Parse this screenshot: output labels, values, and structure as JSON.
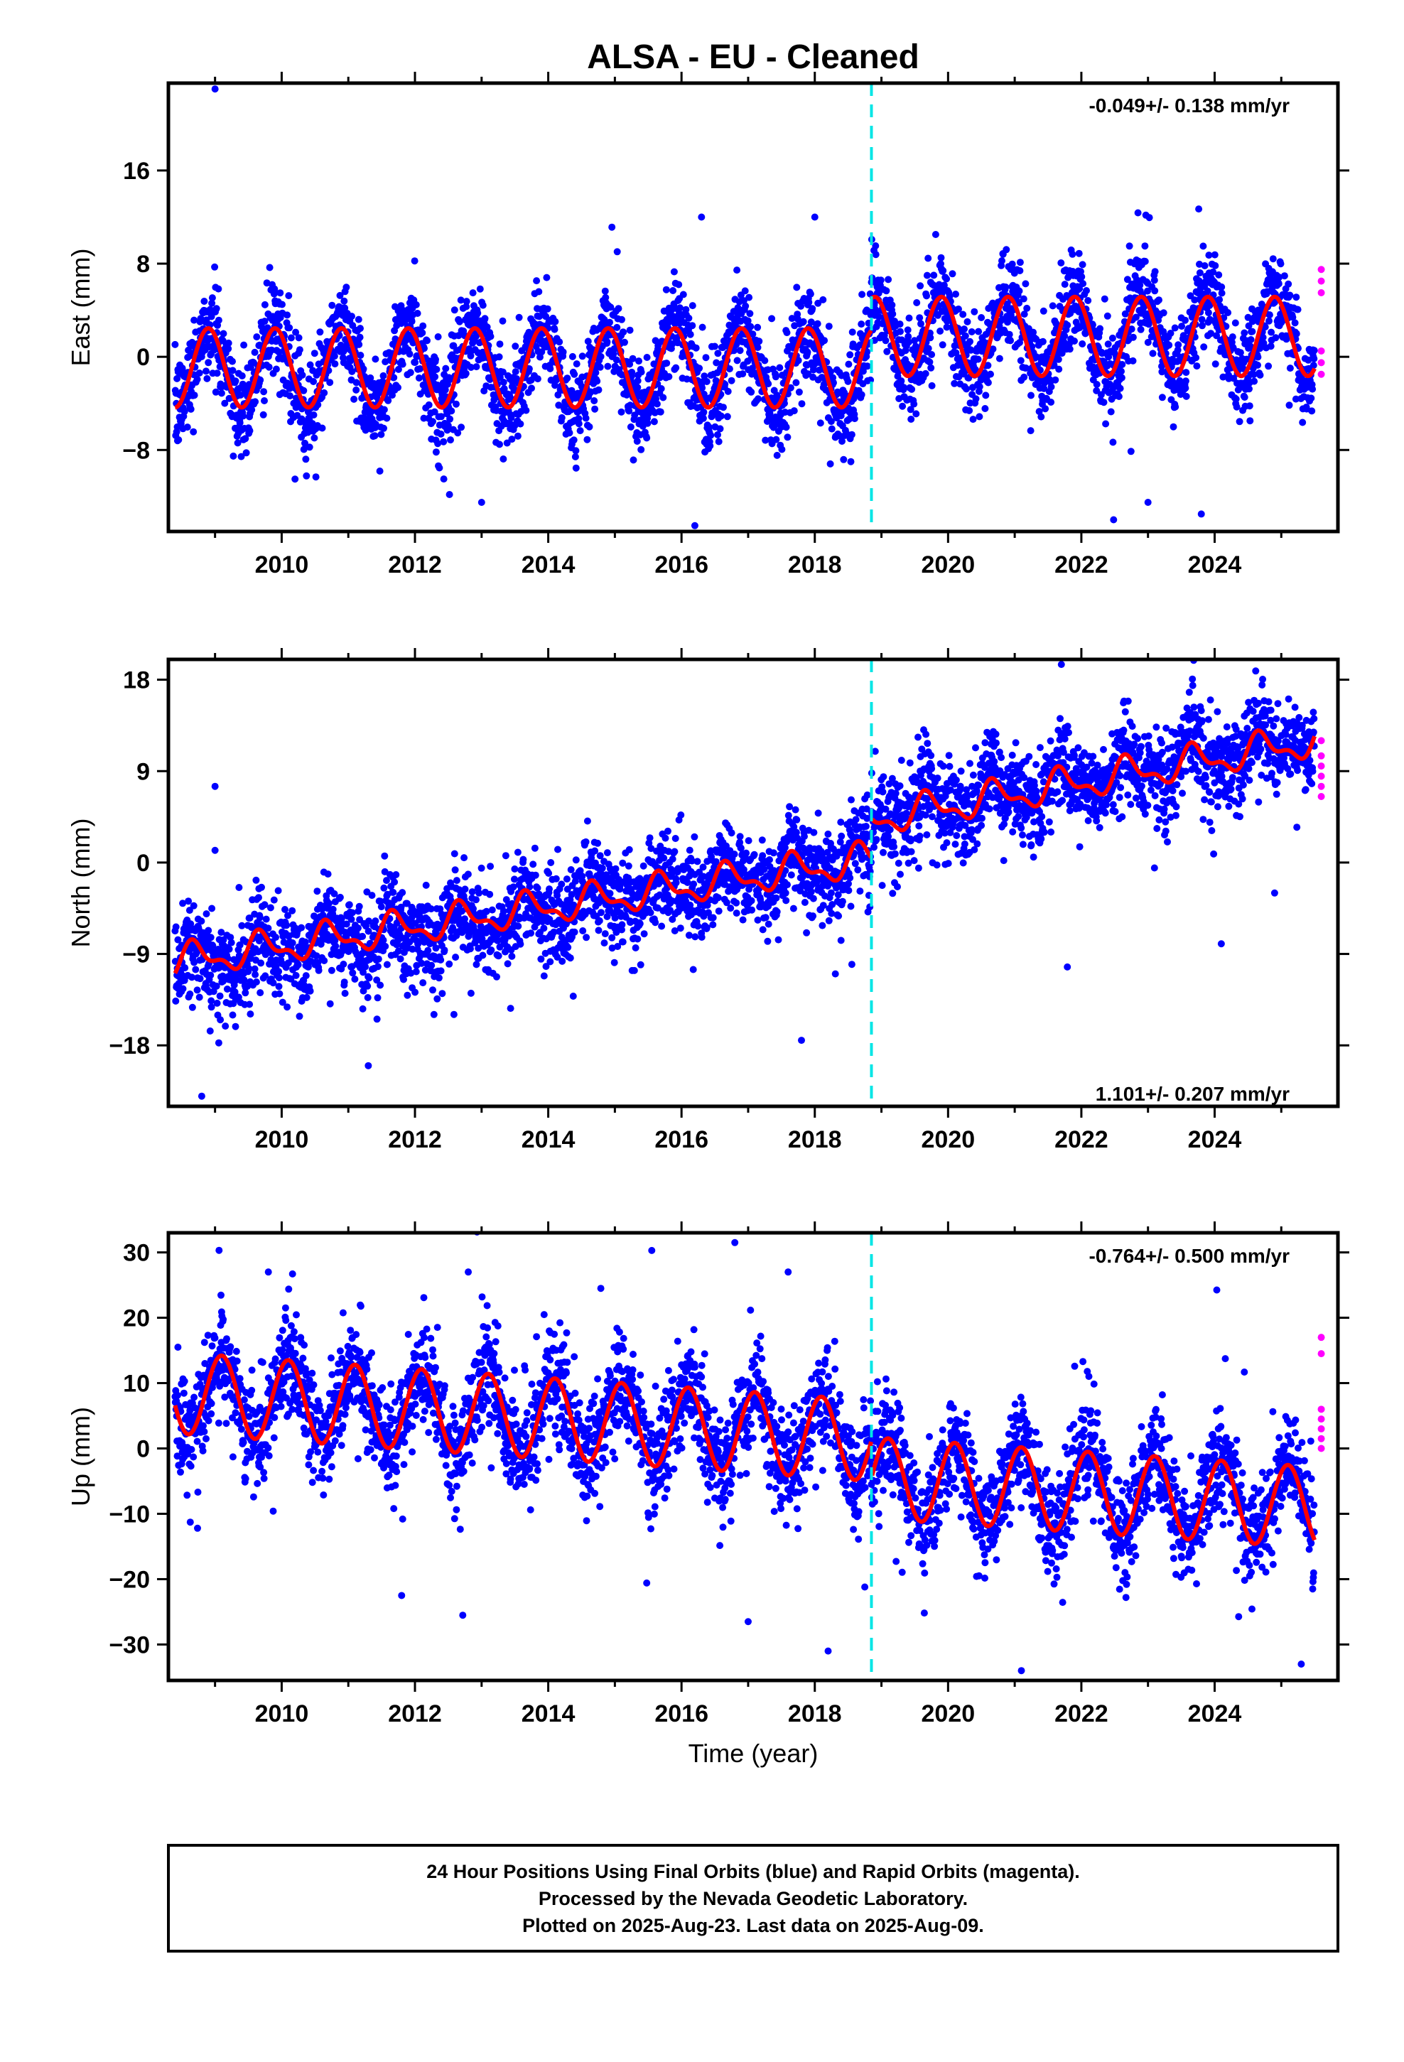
{
  "title": "ALSA  - EU - Cleaned",
  "footer": {
    "line1": "24 Hour Positions Using Final Orbits (blue) and Rapid Orbits (magenta).",
    "line2": "Processed by the Nevada Geodetic Laboratory.",
    "line3": "Plotted on 2025-Aug-23. Last data on 2025-Aug-09."
  },
  "colors": {
    "final": "#0000ff",
    "rapid": "#ff00ff",
    "model": "#ff0000",
    "offset": "#00e5e5"
  },
  "chart_data": [
    {
      "type": "scatter",
      "ylabel": "East (mm)",
      "xlabel": "",
      "xlim": [
        2008.3,
        2025.85
      ],
      "ylim": [
        -15,
        23.5
      ],
      "xticks": [
        "2010",
        "2012",
        "2014",
        "2016",
        "2018",
        "2020",
        "2022",
        "2024"
      ],
      "yticks": [
        "-8",
        "0",
        "8",
        "16"
      ],
      "rate_label": "-0.049+/- 0.138 mm/yr",
      "equipment_change_year": 2018.85,
      "series": [
        {
          "name": "Final Orbits",
          "color": "#0000ff",
          "trend": "flat with seasonal signal",
          "start": 2008.4,
          "end": 2025.5,
          "center_before": -1.0,
          "center_after": 1.8,
          "annual_amplitude": 3.5,
          "scatter_sd": 2.0,
          "outliers": [
            [
              2009.0,
              23.0
            ],
            [
              2016.2,
              -14.5
            ],
            [
              2016.3,
              12.0
            ],
            [
              2018.0,
              12.0
            ],
            [
              2023.0,
              -12.5
            ],
            [
              2023.8,
              -13.5
            ],
            [
              2013.0,
              -12.5
            ],
            [
              2010.2,
              -10.5
            ]
          ]
        },
        {
          "name": "Rapid Orbits",
          "color": "#ff00ff",
          "points": [
            [
              2025.6,
              7.5
            ],
            [
              2025.6,
              6.5
            ],
            [
              2025.6,
              5.5
            ],
            [
              2025.6,
              0.5
            ],
            [
              2025.6,
              -0.5
            ],
            [
              2025.6,
              -1.5
            ]
          ]
        },
        {
          "name": "Model",
          "color": "#ff0000",
          "offset_before": -0.95,
          "offset_after": 1.75,
          "annual_amplitude": 3.4
        }
      ]
    },
    {
      "type": "scatter",
      "ylabel": "North (mm)",
      "xlabel": "",
      "xlim": [
        2008.3,
        2025.85
      ],
      "ylim": [
        -24,
        20
      ],
      "xticks": [
        "2010",
        "2012",
        "2014",
        "2016",
        "2018",
        "2020",
        "2022",
        "2024"
      ],
      "yticks": [
        "-18",
        "-9",
        "0",
        "9",
        "18"
      ],
      "rate_label": "1.101+/- 0.207 mm/yr",
      "equipment_change_year": 2018.85,
      "series": [
        {
          "name": "Final Orbits",
          "color": "#0000ff",
          "start": 2008.4,
          "end": 2025.5,
          "value_at_start": -10.5,
          "value_before_step": 0.5,
          "value_after_step": 4.5,
          "value_at_end": 12.0,
          "annual_amplitude": 1.5,
          "scatter_sd": 2.2,
          "outliers": [
            [
              2008.8,
              -23
            ],
            [
              2009.0,
              7.5
            ],
            [
              2009.0,
              1.2
            ],
            [
              2021.7,
              19.5
            ],
            [
              2024.1,
              -8
            ],
            [
              2024.9,
              -3
            ],
            [
              2011.3,
              -20
            ],
            [
              2017.8,
              -17.5
            ]
          ]
        },
        {
          "name": "Rapid Orbits",
          "color": "#ff00ff",
          "points": [
            [
              2025.6,
              10.5
            ],
            [
              2025.6,
              9.5
            ],
            [
              2025.6,
              8.5
            ],
            [
              2025.6,
              7.5
            ],
            [
              2025.6,
              6.5
            ],
            [
              2025.6,
              12.0
            ]
          ]
        },
        {
          "name": "Model",
          "color": "#ff0000",
          "value_at_start": -9.8,
          "value_before_step": 0.3,
          "value_after_step": 4.2,
          "value_at_end": 12.0,
          "annual_amplitude": 1.4
        }
      ]
    },
    {
      "type": "scatter",
      "ylabel": "Up (mm)",
      "xlabel": "Time (year)",
      "xlim": [
        2008.3,
        2025.85
      ],
      "ylim": [
        -35.5,
        33
      ],
      "xticks": [
        "2010",
        "2012",
        "2014",
        "2016",
        "2018",
        "2020",
        "2022",
        "2024"
      ],
      "yticks": [
        "-30",
        "-20",
        "-10",
        "0",
        "10",
        "20",
        "30"
      ],
      "rate_label": "-0.764+/- 0.500 mm/yr",
      "equipment_change_year": 2018.85,
      "series": [
        {
          "name": "Final Orbits",
          "color": "#0000ff",
          "start": 2008.4,
          "end": 2025.5,
          "value_at_start": 8.5,
          "value_before_step": 1.5,
          "value_after_step": -4.5,
          "value_at_end": -8.5,
          "annual_amplitude": 6.0,
          "scatter_sd": 4.0,
          "outliers": [
            [
              2016.8,
              31.5
            ],
            [
              2017.6,
              27
            ],
            [
              2009.8,
              27
            ],
            [
              2012.8,
              27
            ],
            [
              2021.1,
              -34
            ],
            [
              2025.3,
              -33
            ],
            [
              2018.2,
              -31
            ],
            [
              2017.0,
              -26.5
            ],
            [
              2011.8,
              -22.5
            ]
          ]
        },
        {
          "name": "Rapid Orbits",
          "color": "#ff00ff",
          "points": [
            [
              2025.6,
              17
            ],
            [
              2025.6,
              14.5
            ],
            [
              2025.6,
              6
            ],
            [
              2025.6,
              4.5
            ],
            [
              2025.6,
              3
            ],
            [
              2025.6,
              1.5
            ],
            [
              2025.6,
              0
            ]
          ]
        },
        {
          "name": "Model",
          "color": "#ff0000",
          "value_at_start": 8.5,
          "value_before_step": 1.2,
          "value_after_step": -4.5,
          "value_at_end": -9.0,
          "annual_amplitude": 6.2
        }
      ]
    }
  ]
}
